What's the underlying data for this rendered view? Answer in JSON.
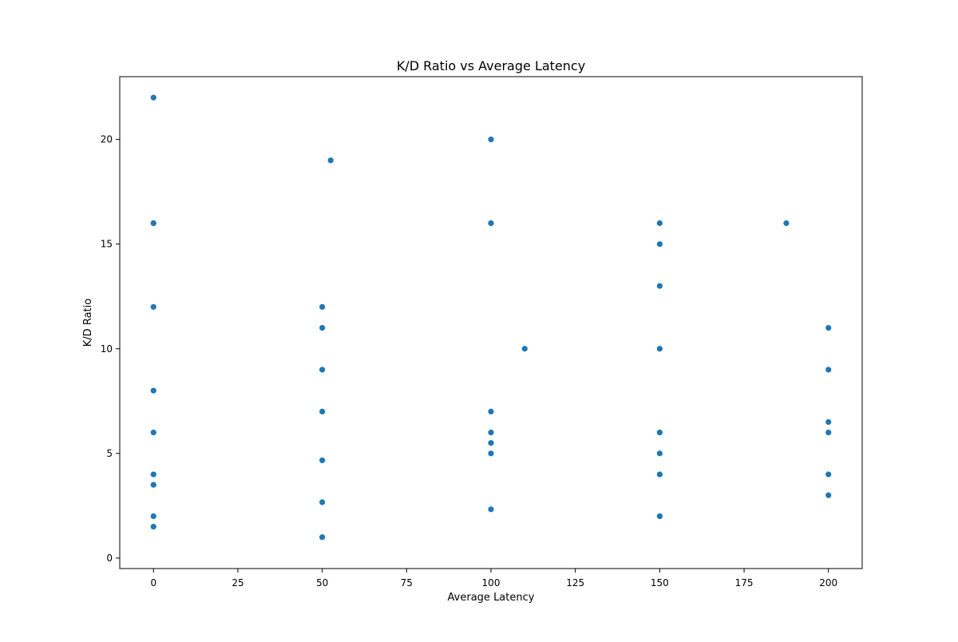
{
  "chart_data": {
    "type": "scatter",
    "title": "K/D Ratio vs Average Latency",
    "xlabel": "Average Latency",
    "ylabel": "K/D Ratio",
    "xlim": [
      -10,
      210
    ],
    "ylim": [
      -0.5,
      23.0
    ],
    "xticks": [
      0,
      25,
      50,
      75,
      100,
      125,
      150,
      175,
      200
    ],
    "yticks": [
      0,
      5,
      10,
      15,
      20
    ],
    "grid": false,
    "marker_color": "#1f77b4",
    "series": [
      {
        "x": [
          0,
          0,
          0,
          0,
          0,
          0,
          0,
          0,
          0,
          0,
          50,
          50,
          50,
          50,
          50,
          50,
          50,
          52.5,
          100,
          100,
          100,
          100,
          100,
          100,
          100,
          100,
          110,
          150,
          150,
          150,
          150,
          150,
          150,
          150,
          150,
          187.5,
          200,
          200,
          200,
          200,
          200,
          200
        ],
        "y": [
          22,
          16,
          12,
          8,
          6,
          4,
          3.5,
          2,
          1.5,
          16,
          12,
          11,
          9,
          7,
          4.67,
          2.67,
          1,
          19,
          20,
          16,
          7,
          6,
          5.5,
          5,
          2.33,
          16,
          10,
          16,
          15,
          13,
          10,
          6,
          5,
          4,
          2,
          16,
          11,
          9,
          6.5,
          6,
          4,
          3
        ]
      }
    ]
  }
}
